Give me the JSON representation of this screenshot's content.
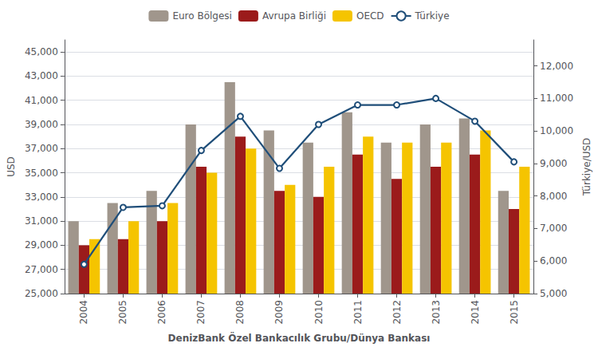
{
  "chart_data": {
    "type": "bar",
    "xlabel": "DenizBank Özel Bankacılık Grubu/Dünya Bankası",
    "ylabel": "USD",
    "y2label": "Türkiye/USD",
    "categories": [
      "2004",
      "2005",
      "2006",
      "2007",
      "2008",
      "2009",
      "2010",
      "2011",
      "2012",
      "2013",
      "2014",
      "2015"
    ],
    "series": [
      {
        "name": "Euro Bölgesi",
        "color": "#a0968c",
        "values": [
          31000,
          32500,
          33500,
          39000,
          42500,
          38500,
          37500,
          40000,
          37500,
          39000,
          39500,
          33500
        ]
      },
      {
        "name": "Avrupa Birliği",
        "color": "#9b1b1b",
        "values": [
          29000,
          29500,
          31000,
          35500,
          38000,
          33500,
          33000,
          36500,
          34500,
          35500,
          36500,
          32000
        ]
      },
      {
        "name": "OECD",
        "color": "#f5c400",
        "values": [
          29500,
          31000,
          32500,
          35000,
          37000,
          34000,
          35500,
          38000,
          37500,
          37500,
          38500,
          35500
        ]
      },
      {
        "name": "Türkiye",
        "type": "line",
        "axis": "y2",
        "color": "#1f4e79",
        "marker": "circle",
        "values": [
          5900,
          7650,
          7700,
          9400,
          10450,
          8850,
          10200,
          10800,
          10800,
          11000,
          10300,
          9050
        ]
      }
    ],
    "ylim": [
      25000,
      46000
    ],
    "yticks": [
      {
        "value": 25000,
        "label": "25,000"
      },
      {
        "value": 27000,
        "label": "27,000"
      },
      {
        "value": 29000,
        "label": "29,000"
      },
      {
        "value": 31000,
        "label": "31,000"
      },
      {
        "value": 33000,
        "label": "33,000"
      },
      {
        "value": 35000,
        "label": "35,000"
      },
      {
        "value": 37000,
        "label": "37,000"
      },
      {
        "value": 39000,
        "label": "39,000"
      },
      {
        "value": 41000,
        "label": "41,000"
      },
      {
        "value": 43000,
        "label": "43,000"
      },
      {
        "value": 45000,
        "label": "45,000"
      }
    ],
    "y2lim": [
      5000,
      12800
    ],
    "y2ticks": [
      {
        "value": 5000,
        "label": "5,000"
      },
      {
        "value": 6000,
        "label": "6,000"
      },
      {
        "value": 7000,
        "label": "7,000"
      },
      {
        "value": 8000,
        "label": "8,000"
      },
      {
        "value": 9000,
        "label": "9,000"
      },
      {
        "value": 10000,
        "label": "10,000"
      },
      {
        "value": 11000,
        "label": "11,000"
      },
      {
        "value": 12000,
        "label": "12,000"
      }
    ],
    "grid": true,
    "legend": "top"
  }
}
